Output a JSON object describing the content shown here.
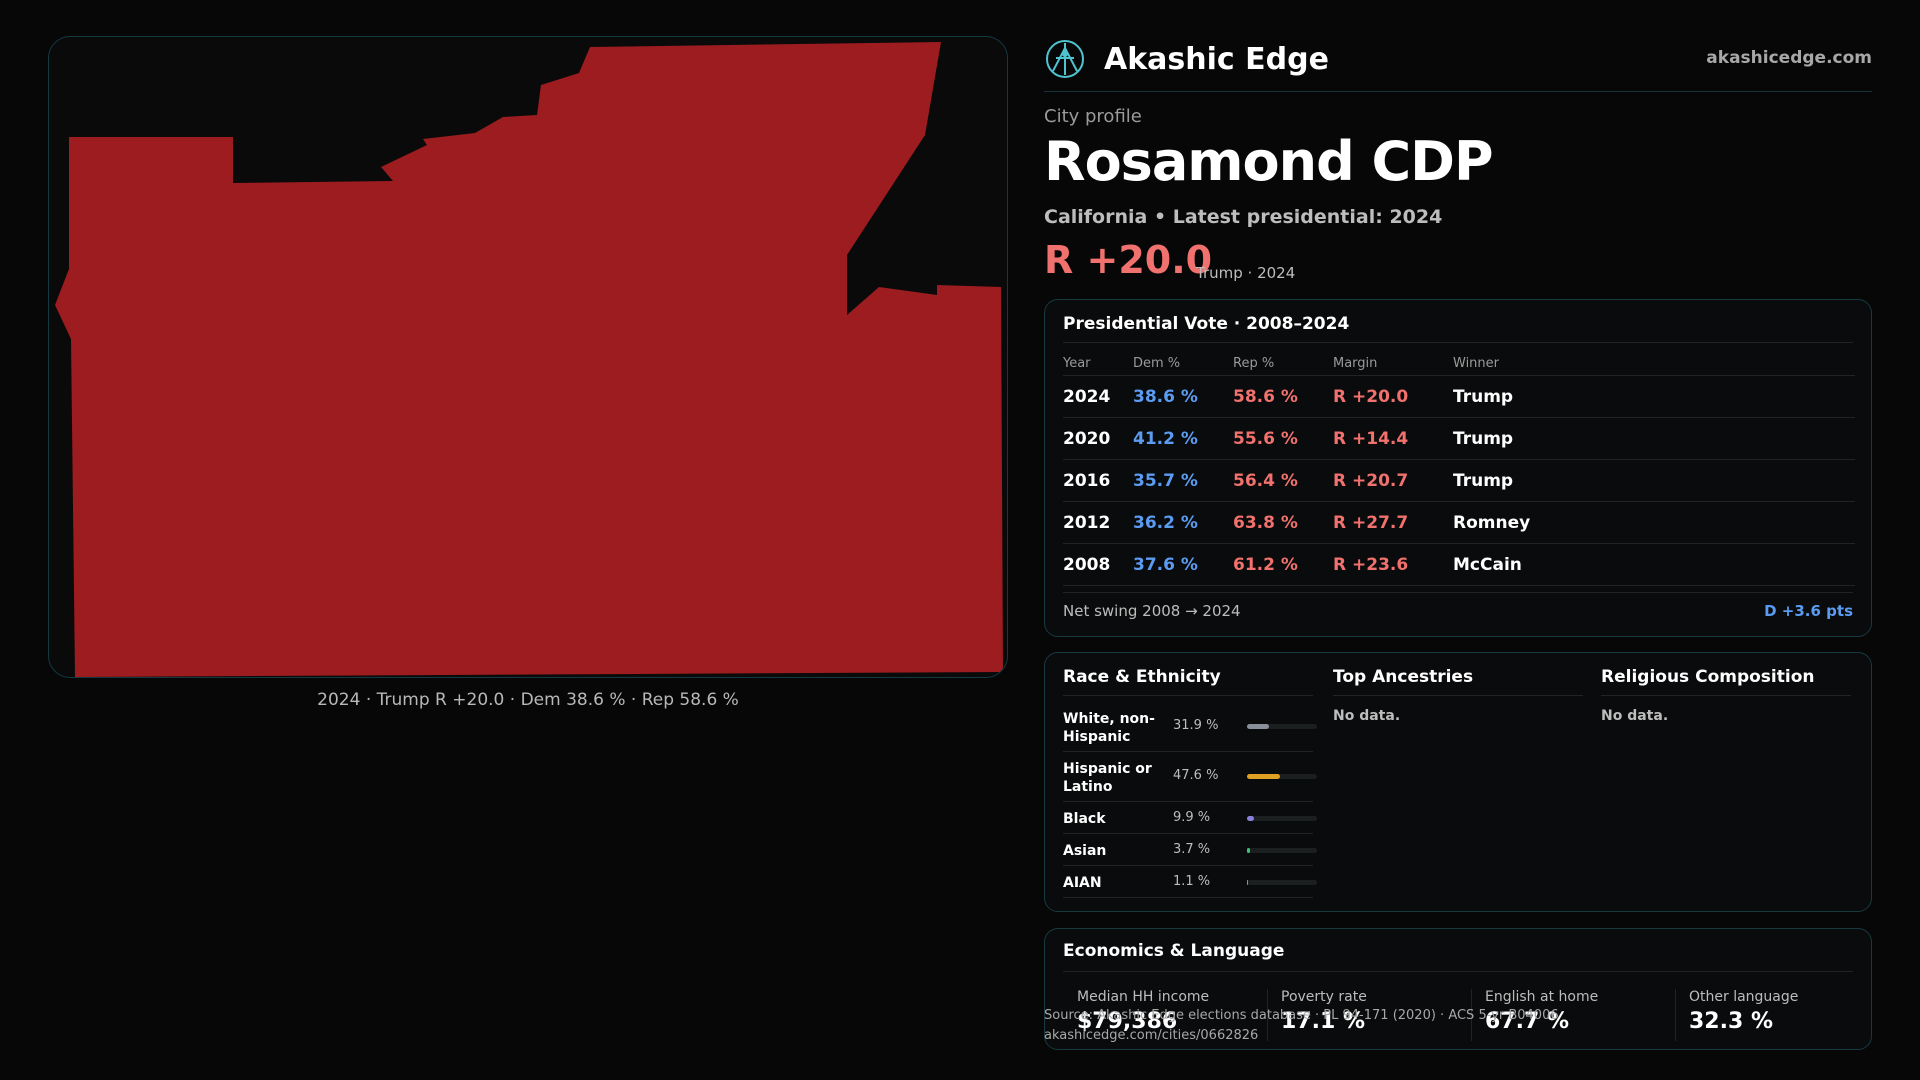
{
  "brand": {
    "name": "Akashic Edge",
    "url": "akashicedge.com",
    "accent": "#4fc3cf"
  },
  "profile": {
    "eyebrow": "City profile",
    "title": "Rosamond CDP",
    "subtitle": "California • Latest presidential: 2024",
    "margin": "R +20.0",
    "margin_note": "Trump · 2024"
  },
  "map": {
    "fill": "#9c1c1f",
    "caption": "2024 · Trump R +20.0 · Dem 38.6 % · Rep 58.6 %"
  },
  "vote": {
    "title": "Presidential Vote · 2008–2024",
    "headers": {
      "year": "Year",
      "dem": "Dem %",
      "rep": "Rep %",
      "margin": "Margin",
      "winner": "Winner"
    },
    "rows": [
      {
        "year": "2024",
        "dem": "38.6 %",
        "rep": "58.6 %",
        "margin": "R +20.0",
        "winner": "Trump"
      },
      {
        "year": "2020",
        "dem": "41.2 %",
        "rep": "55.6 %",
        "margin": "R +14.4",
        "winner": "Trump"
      },
      {
        "year": "2016",
        "dem": "35.7 %",
        "rep": "56.4 %",
        "margin": "R +20.7",
        "winner": "Trump"
      },
      {
        "year": "2012",
        "dem": "36.2 %",
        "rep": "63.8 %",
        "margin": "R +27.7",
        "winner": "Romney"
      },
      {
        "year": "2008",
        "dem": "37.6 %",
        "rep": "61.2 %",
        "margin": "R +23.6",
        "winner": "McCain"
      }
    ],
    "swing_label": "Net swing 2008 → 2024",
    "swing_value": "D +3.6 pts"
  },
  "race": {
    "title": "Race & Ethnicity",
    "rows": [
      {
        "label": "White, non-Hispanic",
        "pct": "31.9 %",
        "value": 31.9,
        "color": "#8a9099"
      },
      {
        "label": "Hispanic or Latino",
        "pct": "47.6 %",
        "value": 47.6,
        "color": "#e0a024"
      },
      {
        "label": "Black",
        "pct": "9.9 %",
        "value": 9.9,
        "color": "#8c7fd9"
      },
      {
        "label": "Asian",
        "pct": "3.7 %",
        "value": 3.7,
        "color": "#3fbf7a"
      },
      {
        "label": "AIAN",
        "pct": "1.1 %",
        "value": 1.1,
        "color": "#d9774f"
      }
    ]
  },
  "ancestries": {
    "title": "Top Ancestries",
    "empty": "No data."
  },
  "religion": {
    "title": "Religious Composition",
    "empty": "No data."
  },
  "economics": {
    "title": "Economics & Language",
    "stats": [
      {
        "label": "Median HH income",
        "value": "$79,386"
      },
      {
        "label": "Poverty rate",
        "value": "17.1 %"
      },
      {
        "label": "English at home",
        "value": "67.7 %"
      },
      {
        "label": "Other language",
        "value": "32.3 %"
      }
    ]
  },
  "source": {
    "line1": "Source: Akashic Edge elections database · PL 94-171 (2020) · ACS 5-yr B04006",
    "line2": "akashicedge.com/cities/0662826"
  }
}
